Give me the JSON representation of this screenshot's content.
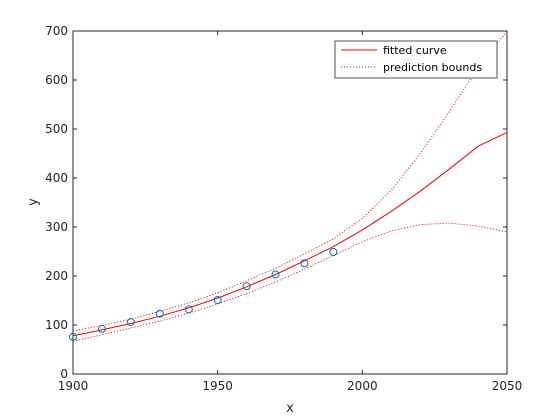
{
  "chart_data": {
    "type": "scatter",
    "xlabel": "x",
    "ylabel": "y",
    "xlim": [
      1900,
      2050
    ],
    "ylim": [
      0,
      700
    ],
    "x_ticks": [
      1900,
      1950,
      2000,
      2050
    ],
    "y_ticks": [
      0,
      100,
      200,
      300,
      400,
      500,
      600,
      700
    ],
    "x_tick_labels": [
      "1900",
      "1950",
      "2000",
      "2050"
    ],
    "y_tick_labels": [
      "0",
      "100",
      "200",
      "300",
      "400",
      "500",
      "600",
      "700"
    ],
    "grid": false,
    "legend_position": "top-right",
    "points": {
      "x": [
        1900,
        1910,
        1920,
        1930,
        1940,
        1950,
        1960,
        1970,
        1980,
        1990
      ],
      "y": [
        76,
        92,
        106,
        123,
        132,
        151,
        179,
        203,
        226,
        249
      ],
      "marker": "circle",
      "color": "#0072BD"
    },
    "fitted_curve": {
      "name": "fitted curve",
      "color": "#ff0000",
      "x": [
        1900,
        1910,
        1920,
        1930,
        1940,
        1950,
        1960,
        1970,
        1980,
        1990,
        2000,
        2010,
        2020,
        2030,
        2040,
        2050
      ],
      "y": [
        78,
        90,
        103,
        118,
        135,
        155,
        178,
        203,
        231,
        260,
        294,
        332,
        373,
        418,
        465,
        493
      ]
    },
    "prediction_bounds": {
      "name": "prediction bounds",
      "color": "#ff0000",
      "x": [
        1900,
        1910,
        1920,
        1930,
        1940,
        1950,
        1960,
        1970,
        1980,
        1990,
        2000,
        2010,
        2020,
        2030,
        2040,
        2050
      ],
      "upper": [
        88,
        99,
        112,
        128,
        145,
        166,
        190,
        216,
        245,
        276,
        318,
        375,
        450,
        535,
        625,
        700
      ],
      "lower": [
        67,
        80,
        94,
        108,
        124,
        143,
        164,
        188,
        214,
        242,
        270,
        292,
        305,
        308,
        302,
        290
      ]
    }
  }
}
